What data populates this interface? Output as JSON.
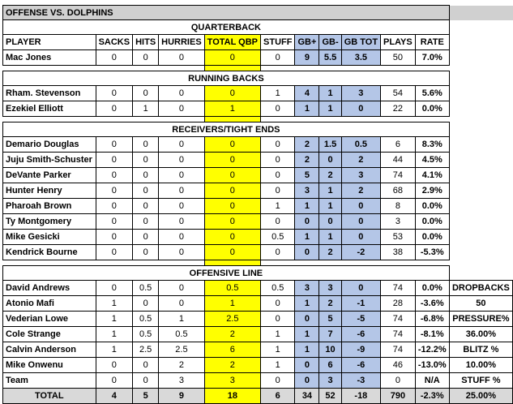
{
  "title": "OFFENSE VS. DOLPHINS",
  "headers": [
    "PLAYER",
    "SACKS",
    "HITS",
    "HURRIES",
    "TOTAL QBP",
    "STUFF",
    "GB+",
    "GB-",
    "GB TOT",
    "PLAYS",
    "RATE"
  ],
  "sections": [
    {
      "label": "QUARTERBACK",
      "show_header": true,
      "rows": [
        [
          "Mac Jones",
          "0",
          "0",
          "0",
          "0",
          "0",
          "9",
          "5.5",
          "3.5",
          "50",
          "7.0%"
        ]
      ]
    },
    {
      "label": "RUNNING BACKS",
      "rows": [
        [
          "Rham. Stevenson",
          "0",
          "0",
          "0",
          "0",
          "1",
          "4",
          "1",
          "3",
          "54",
          "5.6%"
        ],
        [
          "Ezekiel Elliott",
          "0",
          "1",
          "0",
          "1",
          "0",
          "1",
          "1",
          "0",
          "22",
          "0.0%"
        ]
      ]
    },
    {
      "label": "RECEIVERS/TIGHT ENDS",
      "rows": [
        [
          "Demario Douglas",
          "0",
          "0",
          "0",
          "0",
          "0",
          "2",
          "1.5",
          "0.5",
          "6",
          "8.3%"
        ],
        [
          "Juju Smith-Schuster",
          "0",
          "0",
          "0",
          "0",
          "0",
          "2",
          "0",
          "2",
          "44",
          "4.5%"
        ],
        [
          "DeVante Parker",
          "0",
          "0",
          "0",
          "0",
          "0",
          "5",
          "2",
          "3",
          "74",
          "4.1%"
        ],
        [
          "Hunter Henry",
          "0",
          "0",
          "0",
          "0",
          "0",
          "3",
          "1",
          "2",
          "68",
          "2.9%"
        ],
        [
          "Pharoah Brown",
          "0",
          "0",
          "0",
          "0",
          "1",
          "1",
          "1",
          "0",
          "8",
          "0.0%"
        ],
        [
          "Ty Montgomery",
          "0",
          "0",
          "0",
          "0",
          "0",
          "0",
          "0",
          "0",
          "3",
          "0.0%"
        ],
        [
          "Mike Gesicki",
          "0",
          "0",
          "0",
          "0",
          "0.5",
          "1",
          "1",
          "0",
          "53",
          "0.0%"
        ],
        [
          "Kendrick Bourne",
          "0",
          "0",
          "0",
          "0",
          "0",
          "0",
          "2",
          "-2",
          "38",
          "-5.3%"
        ]
      ]
    },
    {
      "label": "OFFENSIVE LINE",
      "rows": [
        [
          "David Andrews",
          "0",
          "0.5",
          "0",
          "0.5",
          "0.5",
          "3",
          "3",
          "0",
          "74",
          "0.0%"
        ],
        [
          "Atonio Mafi",
          "1",
          "0",
          "0",
          "1",
          "0",
          "1",
          "2",
          "-1",
          "28",
          "-3.6%"
        ],
        [
          "Vederian Lowe",
          "1",
          "0.5",
          "1",
          "2.5",
          "0",
          "0",
          "5",
          "-5",
          "74",
          "-6.8%"
        ],
        [
          "Cole Strange",
          "1",
          "0.5",
          "0.5",
          "2",
          "1",
          "1",
          "7",
          "-6",
          "74",
          "-8.1%"
        ],
        [
          "Calvin Anderson",
          "1",
          "2.5",
          "2.5",
          "6",
          "1",
          "1",
          "10",
          "-9",
          "74",
          "-12.2%"
        ],
        [
          "Mike Onwenu",
          "0",
          "0",
          "2",
          "2",
          "1",
          "0",
          "6",
          "-6",
          "46",
          "-13.0%"
        ],
        [
          "Team",
          "0",
          "0",
          "3",
          "3",
          "0",
          "0",
          "3",
          "-3",
          "0",
          "N/A"
        ]
      ]
    }
  ],
  "total": [
    "TOTAL",
    "4",
    "5",
    "9",
    "18",
    "6",
    "34",
    "52",
    "-18",
    "790",
    "-2.3%"
  ],
  "side_stats": [
    "DROPBACKS",
    "50",
    "PRESSURE%",
    "36.00%",
    "BLITZ %",
    "10.00%",
    "STUFF %",
    "25.00%"
  ]
}
